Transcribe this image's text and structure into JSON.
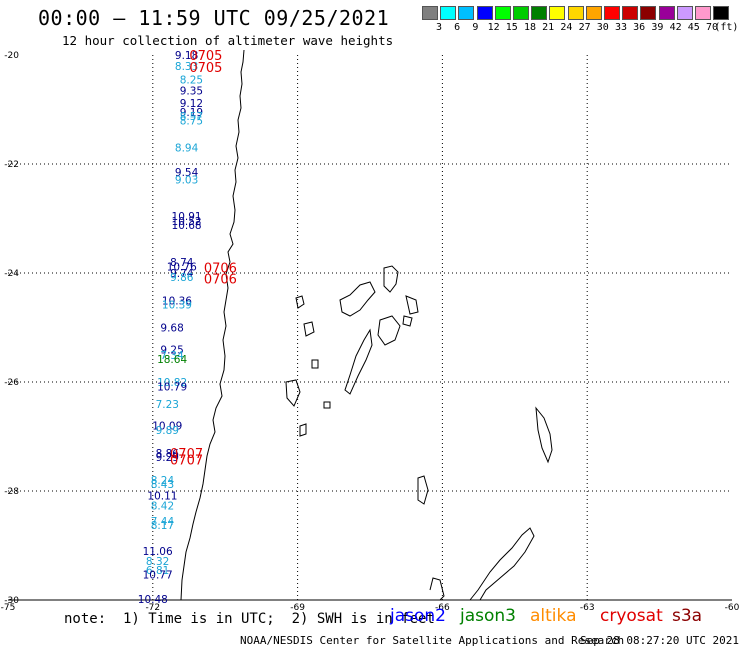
{
  "header": {
    "title": "00:00 – 11:59 UTC 09/25/2021",
    "subtitle": "12 hour collection of altimeter wave heights"
  },
  "legend": {
    "unit": "(ft)",
    "bins": [
      {
        "label": "3",
        "color": "#808080"
      },
      {
        "label": "6",
        "color": "#00ffff"
      },
      {
        "label": "9",
        "color": "#00bfff"
      },
      {
        "label": "12",
        "color": "#0000ff"
      },
      {
        "label": "15",
        "color": "#00ff00"
      },
      {
        "label": "18",
        "color": "#00cc00"
      },
      {
        "label": "21",
        "color": "#008000"
      },
      {
        "label": "24",
        "color": "#ffff00"
      },
      {
        "label": "27",
        "color": "#ffd700"
      },
      {
        "label": "30",
        "color": "#ffa500"
      },
      {
        "label": "33",
        "color": "#ff0000"
      },
      {
        "label": "36",
        "color": "#cc0000"
      },
      {
        "label": "39",
        "color": "#8b0000"
      },
      {
        "label": "42",
        "color": "#990099"
      },
      {
        "label": "45",
        "color": "#cc99ff"
      },
      {
        "label": "70",
        "color": "#ff99cc"
      },
      {
        "label": "",
        "color": "#000000"
      }
    ]
  },
  "axes": {
    "lat_labels": [
      "-20",
      "-22",
      "-24",
      "-26",
      "-28",
      "-30"
    ],
    "lon_labels": [
      "-75",
      "-72",
      "-69",
      "-66",
      "-63",
      "-60"
    ]
  },
  "wave_heights": [
    {
      "value": "9.18",
      "lon": -71.3,
      "lat": -20.0,
      "color": "#00008b"
    },
    {
      "value": "8.33",
      "lon": -71.3,
      "lat": -20.2,
      "color": "#1aa5d6"
    },
    {
      "value": "8.25",
      "lon": -71.2,
      "lat": -20.45,
      "color": "#1aa5d6"
    },
    {
      "value": "9.35",
      "lon": -71.2,
      "lat": -20.65,
      "color": "#00008b"
    },
    {
      "value": "9.12",
      "lon": -71.2,
      "lat": -20.88,
      "color": "#00008b"
    },
    {
      "value": "9.19",
      "lon": -71.2,
      "lat": -21.05,
      "color": "#00008b"
    },
    {
      "value": "8.57",
      "lon": -71.2,
      "lat": -21.12,
      "color": "#1aa5d6"
    },
    {
      "value": "8.75",
      "lon": -71.2,
      "lat": -21.2,
      "color": "#1aa5d6"
    },
    {
      "value": "8.94",
      "lon": -71.3,
      "lat": -21.7,
      "color": "#1aa5d6"
    },
    {
      "value": "9.54",
      "lon": -71.3,
      "lat": -22.15,
      "color": "#00008b"
    },
    {
      "value": "9.03",
      "lon": -71.3,
      "lat": -22.28,
      "color": "#1aa5d6"
    },
    {
      "value": "10.91",
      "lon": -71.3,
      "lat": -22.95,
      "color": "#00008b"
    },
    {
      "value": "10.52",
      "lon": -71.3,
      "lat": -23.05,
      "color": "#00008b"
    },
    {
      "value": "10.68",
      "lon": -71.3,
      "lat": -23.12,
      "color": "#00008b"
    },
    {
      "value": "8.74",
      "lon": -71.4,
      "lat": -23.8,
      "color": "#00008b"
    },
    {
      "value": "10.76",
      "lon": -71.4,
      "lat": -23.88,
      "color": "#00008b"
    },
    {
      "value": "9.74",
      "lon": -71.4,
      "lat": -24.0,
      "color": "#00008b"
    },
    {
      "value": "9.86",
      "lon": -71.4,
      "lat": -24.07,
      "color": "#1aa5d6"
    },
    {
      "value": "10.36",
      "lon": -71.5,
      "lat": -24.5,
      "color": "#00008b"
    },
    {
      "value": "10.39",
      "lon": -71.5,
      "lat": -24.58,
      "color": "#1aa5d6"
    },
    {
      "value": "9.68",
      "lon": -71.6,
      "lat": -25.0,
      "color": "#00008b"
    },
    {
      "value": "9.25",
      "lon": -71.6,
      "lat": -25.4,
      "color": "#00008b"
    },
    {
      "value": "7.34",
      "lon": -71.6,
      "lat": -25.5,
      "color": "#1aa5d6"
    },
    {
      "value": "18.64",
      "lon": -71.6,
      "lat": -25.58,
      "color": "#008000"
    },
    {
      "value": "10.82",
      "lon": -71.6,
      "lat": -26.0,
      "color": "#1aa5d6"
    },
    {
      "value": "10.79",
      "lon": -71.6,
      "lat": -26.08,
      "color": "#00008b"
    },
    {
      "value": "7.23",
      "lon": -71.7,
      "lat": -26.4,
      "color": "#1aa5d6"
    },
    {
      "value": "10.09",
      "lon": -71.7,
      "lat": -26.8,
      "color": "#00008b"
    },
    {
      "value": "9.89",
      "lon": -71.7,
      "lat": -26.88,
      "color": "#1aa5d6"
    },
    {
      "value": "8.86",
      "lon": -71.7,
      "lat": -27.3,
      "color": "#00008b"
    },
    {
      "value": "9.29",
      "lon": -71.7,
      "lat": -27.38,
      "color": "#00008b"
    },
    {
      "value": "8.24",
      "lon": -71.8,
      "lat": -27.8,
      "color": "#1aa5d6"
    },
    {
      "value": "8.43",
      "lon": -71.8,
      "lat": -27.87,
      "color": "#1aa5d6"
    },
    {
      "value": "10.11",
      "lon": -71.8,
      "lat": -28.08,
      "color": "#00008b"
    },
    {
      "value": "8.42",
      "lon": -71.8,
      "lat": -28.27,
      "color": "#1aa5d6"
    },
    {
      "value": "7.44",
      "lon": -71.8,
      "lat": -28.55,
      "color": "#1aa5d6"
    },
    {
      "value": "8.17",
      "lon": -71.8,
      "lat": -28.62,
      "color": "#1aa5d6"
    },
    {
      "value": "11.06",
      "lon": -71.9,
      "lat": -29.1,
      "color": "#00008b"
    },
    {
      "value": "8.32",
      "lon": -71.9,
      "lat": -29.28,
      "color": "#1aa5d6"
    },
    {
      "value": "6.81",
      "lon": -71.9,
      "lat": -29.45,
      "color": "#1aa5d6"
    },
    {
      "value": "10.77",
      "lon": -71.9,
      "lat": -29.53,
      "color": "#00008b"
    },
    {
      "value": "10.48",
      "lon": -72.0,
      "lat": -29.98,
      "color": "#00008b"
    }
  ],
  "pass_times": [
    {
      "value": "0705",
      "lon": -70.9,
      "lat": -20.0
    },
    {
      "value": "0705",
      "lon": -70.9,
      "lat": -20.22
    },
    {
      "value": "0706",
      "lon": -70.6,
      "lat": -23.9
    },
    {
      "value": "0706",
      "lon": -70.6,
      "lat": -24.1
    },
    {
      "value": "0707",
      "lon": -71.3,
      "lat": -27.3
    },
    {
      "value": "0707",
      "lon": -71.3,
      "lat": -27.42
    }
  ],
  "footer": {
    "note": "note:  1) Time is in UTC;  2) SWH is in feet",
    "satellites": [
      {
        "name": "jason2",
        "color": "#0000ff"
      },
      {
        "name": "jason3",
        "color": "#008000"
      },
      {
        "name": "altika",
        "color": "#ff8c00"
      },
      {
        "name": "cryosat",
        "color": "#e00000"
      },
      {
        "name": "s3a",
        "color": "#8b0000"
      }
    ],
    "credit": "NOAA/NESDIS Center for Satellite Applications and Research",
    "timestamp": "Sep 28 08:27:20 UTC 2021"
  }
}
